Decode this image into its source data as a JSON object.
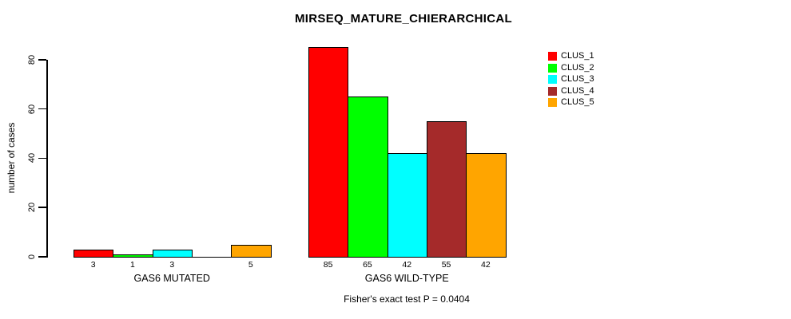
{
  "chart_data": {
    "type": "bar",
    "title": "MIRSEQ_MATURE_CHIERARCHICAL",
    "ylabel": "number of cases",
    "xlabel": "",
    "ylim": [
      0,
      80
    ],
    "yticks": [
      0,
      20,
      40,
      60,
      80
    ],
    "grid": false,
    "legend_position": "top-right",
    "categories": [
      "GAS6 MUTATED",
      "GAS6 WILD-TYPE"
    ],
    "series": [
      {
        "name": "CLUS_1",
        "color": "#FF0000",
        "values": [
          3,
          85
        ]
      },
      {
        "name": "CLUS_2",
        "color": "#00FF00",
        "values": [
          1,
          65
        ]
      },
      {
        "name": "CLUS_3",
        "color": "#00FFFF",
        "values": [
          3,
          42
        ]
      },
      {
        "name": "CLUS_4",
        "color": "#A52A2A",
        "values": [
          0,
          55
        ]
      },
      {
        "name": "CLUS_5",
        "color": "#FFA500",
        "values": [
          5,
          42
        ]
      }
    ],
    "bar_value_labels": [
      [
        "3",
        "1",
        "3",
        "",
        "5"
      ],
      [
        "85",
        "65",
        "42",
        "55",
        "42"
      ]
    ],
    "annotation": "Fisher's exact test P = 0.0404"
  }
}
